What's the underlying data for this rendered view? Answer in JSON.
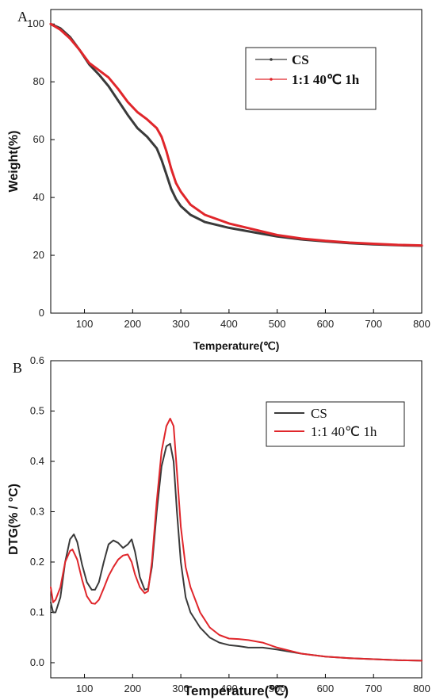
{
  "chart_data": [
    {
      "type": "line",
      "panel_label": "A",
      "xlabel": "Temperature(℃)",
      "ylabel": "Weight(%)",
      "xlim": [
        30,
        800
      ],
      "ylim": [
        0,
        105
      ],
      "xticks": [
        100,
        200,
        300,
        400,
        500,
        600,
        700,
        800
      ],
      "yticks": [
        0,
        20,
        40,
        60,
        80,
        100
      ],
      "legend_position": "top-right",
      "grid": false,
      "series": [
        {
          "name": "CS",
          "color": "#3a3a3a",
          "x": [
            30,
            50,
            70,
            90,
            110,
            130,
            150,
            170,
            190,
            210,
            230,
            250,
            260,
            270,
            280,
            290,
            300,
            320,
            350,
            400,
            450,
            500,
            550,
            600,
            650,
            700,
            750,
            800
          ],
          "y": [
            100,
            98.5,
            95.5,
            91,
            86,
            82.5,
            78.5,
            73.5,
            68.5,
            64,
            61,
            57,
            53,
            48,
            43,
            39.5,
            37,
            34,
            31.5,
            29.5,
            28,
            26.5,
            25.5,
            24.8,
            24.2,
            23.8,
            23.5,
            23.3
          ]
        },
        {
          "name": "1:1 40℃ 1h",
          "color": "#e0262b",
          "x": [
            30,
            50,
            70,
            90,
            110,
            130,
            150,
            170,
            190,
            210,
            230,
            250,
            260,
            270,
            280,
            290,
            300,
            320,
            350,
            400,
            450,
            500,
            550,
            600,
            650,
            700,
            750,
            800
          ],
          "y": [
            100,
            98,
            95,
            91,
            86.5,
            84,
            81.5,
            77.5,
            73,
            69.5,
            67,
            64,
            61,
            56,
            50,
            45,
            42,
            37.5,
            34,
            31,
            29,
            27,
            25.8,
            25,
            24.4,
            24,
            23.6,
            23.4
          ]
        }
      ]
    },
    {
      "type": "line",
      "panel_label": "B",
      "xlabel": "Temperature(℃)",
      "ylabel": "DTG(% / °C)",
      "xlim": [
        30,
        800
      ],
      "ylim": [
        -0.03,
        0.6
      ],
      "xticks": [
        100,
        200,
        300,
        400,
        500,
        600,
        700,
        800
      ],
      "yticks": [
        0.0,
        0.1,
        0.2,
        0.3,
        0.4,
        0.5,
        0.6
      ],
      "ytick_labels": [
        "0.0",
        "0.1",
        "0.2",
        "0.3",
        "0.4",
        "0.5",
        "0.6"
      ],
      "legend_position": "top-right",
      "grid": false,
      "series": [
        {
          "name": "CS",
          "color": "#3a3a3a",
          "x": [
            30,
            35,
            40,
            50,
            60,
            70,
            78,
            85,
            95,
            105,
            115,
            122,
            130,
            140,
            150,
            160,
            170,
            180,
            190,
            198,
            205,
            215,
            225,
            232,
            240,
            250,
            260,
            270,
            278,
            285,
            292,
            300,
            310,
            320,
            340,
            360,
            380,
            400,
            420,
            440,
            470,
            500,
            550,
            600,
            650,
            700,
            750,
            800
          ],
          "y": [
            0.12,
            0.1,
            0.1,
            0.13,
            0.2,
            0.245,
            0.255,
            0.24,
            0.195,
            0.16,
            0.145,
            0.145,
            0.16,
            0.2,
            0.235,
            0.243,
            0.238,
            0.228,
            0.235,
            0.245,
            0.22,
            0.17,
            0.145,
            0.147,
            0.19,
            0.3,
            0.39,
            0.43,
            0.435,
            0.4,
            0.3,
            0.2,
            0.13,
            0.1,
            0.07,
            0.05,
            0.04,
            0.035,
            0.033,
            0.03,
            0.03,
            0.026,
            0.018,
            0.012,
            0.009,
            0.007,
            0.005,
            0.004
          ]
        },
        {
          "name": "1:1 40℃ 1h",
          "color": "#e0262b",
          "x": [
            30,
            35,
            40,
            50,
            60,
            70,
            75,
            85,
            95,
            105,
            115,
            122,
            130,
            140,
            150,
            160,
            170,
            180,
            190,
            198,
            205,
            215,
            225,
            232,
            240,
            250,
            260,
            270,
            278,
            285,
            292,
            300,
            310,
            320,
            340,
            360,
            380,
            400,
            420,
            440,
            470,
            500,
            550,
            600,
            650,
            700,
            750,
            800
          ],
          "y": [
            0.15,
            0.12,
            0.125,
            0.15,
            0.2,
            0.222,
            0.225,
            0.205,
            0.165,
            0.132,
            0.118,
            0.117,
            0.125,
            0.148,
            0.172,
            0.19,
            0.205,
            0.213,
            0.215,
            0.2,
            0.175,
            0.15,
            0.138,
            0.142,
            0.2,
            0.32,
            0.42,
            0.47,
            0.485,
            0.47,
            0.38,
            0.27,
            0.19,
            0.15,
            0.1,
            0.07,
            0.055,
            0.048,
            0.047,
            0.045,
            0.04,
            0.03,
            0.018,
            0.012,
            0.009,
            0.007,
            0.005,
            0.004
          ]
        }
      ]
    }
  ]
}
